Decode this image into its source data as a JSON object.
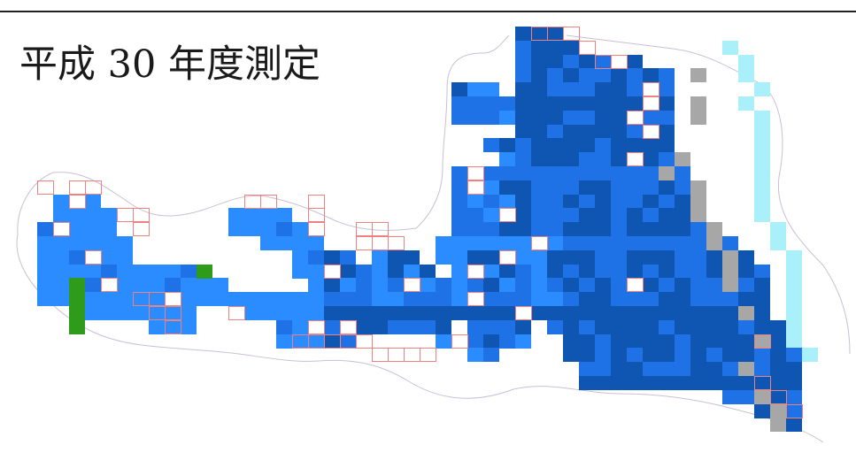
{
  "title": "平成 30 年度測定",
  "palette": {
    "dark": "#0f56b3",
    "mid": "#1e72e6",
    "light": "#2b8cff",
    "paleCyan": "#a9f0fb",
    "gray": "#a7a7a7",
    "green": "#2e9b1a",
    "gridLine": "#ef8181",
    "boundary": "#c9bfd6"
  }
}
